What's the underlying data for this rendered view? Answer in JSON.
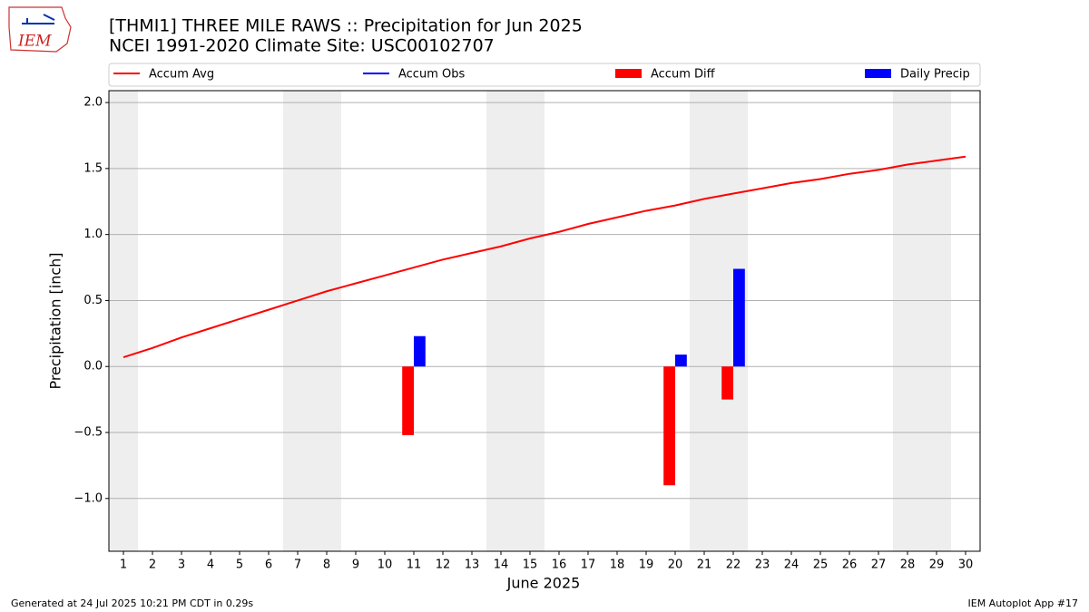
{
  "logo_text": "IEM",
  "footer_left": "Generated at 24 Jul 2025 10:21 PM CDT in 0.29s",
  "footer_right": "IEM Autoplot App #17",
  "chart_data": {
    "type": "line",
    "title": "[THMI1] THREE MILE RAWS :: Precipitation for Jun 2025",
    "subtitle": "NCEI 1991-2020 Climate Site: USC00102707",
    "x_label": "June 2025",
    "y_label": "Precipitation [inch]",
    "x": [
      1,
      2,
      3,
      4,
      5,
      6,
      7,
      8,
      9,
      10,
      11,
      12,
      13,
      14,
      15,
      16,
      17,
      18,
      19,
      20,
      21,
      22,
      23,
      24,
      25,
      26,
      27,
      28,
      29,
      30
    ],
    "shaded_days": [
      1,
      7,
      8,
      14,
      15,
      21,
      22,
      28,
      29
    ],
    "series": [
      {
        "name": "Accum Avg",
        "type": "line",
        "color": "#ff0000",
        "values": [
          0.07,
          0.14,
          0.22,
          0.29,
          0.36,
          0.43,
          0.5,
          0.57,
          0.63,
          0.69,
          0.75,
          0.81,
          0.86,
          0.91,
          0.97,
          1.02,
          1.08,
          1.13,
          1.18,
          1.22,
          1.27,
          1.31,
          1.35,
          1.39,
          1.42,
          1.46,
          1.49,
          1.53,
          1.56,
          1.59
        ]
      },
      {
        "name": "Accum Obs",
        "type": "line",
        "color": "#0000ff",
        "values": [
          null,
          null,
          null,
          null,
          null,
          null,
          null,
          null,
          null,
          null,
          null,
          null,
          null,
          null,
          null,
          null,
          null,
          null,
          null,
          null,
          null,
          null,
          null,
          null,
          null,
          null,
          null,
          null,
          null,
          null
        ]
      },
      {
        "name": "Accum Diff",
        "type": "bar",
        "color": "#ff0000",
        "values": [
          null,
          null,
          null,
          null,
          null,
          null,
          null,
          null,
          null,
          null,
          -0.52,
          null,
          null,
          null,
          null,
          null,
          null,
          null,
          null,
          -0.9,
          null,
          -0.25,
          null,
          null,
          null,
          null,
          null,
          null,
          null,
          null
        ]
      },
      {
        "name": "Daily Precip",
        "type": "bar",
        "color": "#0000ff",
        "values": [
          null,
          null,
          null,
          null,
          null,
          null,
          null,
          null,
          null,
          null,
          0.23,
          null,
          null,
          null,
          null,
          null,
          null,
          null,
          null,
          0.09,
          null,
          0.74,
          null,
          null,
          null,
          null,
          null,
          null,
          null,
          null
        ]
      }
    ],
    "xlim": [
      0.5,
      30.5
    ],
    "xticks": [
      1,
      2,
      3,
      4,
      5,
      6,
      7,
      8,
      9,
      10,
      11,
      12,
      13,
      14,
      15,
      16,
      17,
      18,
      19,
      20,
      21,
      22,
      23,
      24,
      25,
      26,
      27,
      28,
      29,
      30
    ],
    "ylim": [
      -1.4,
      2.09
    ],
    "yticks": [
      {
        "value": -1.0,
        "label": "−1.0"
      },
      {
        "value": -0.5,
        "label": "−0.5"
      },
      {
        "value": 0,
        "label": "0.0"
      },
      0.5,
      {
        "value": 1.0,
        "label": "1.0"
      },
      1.5,
      {
        "value": 2.0,
        "label": "2.0"
      }
    ],
    "grid": true,
    "legend": "top"
  }
}
